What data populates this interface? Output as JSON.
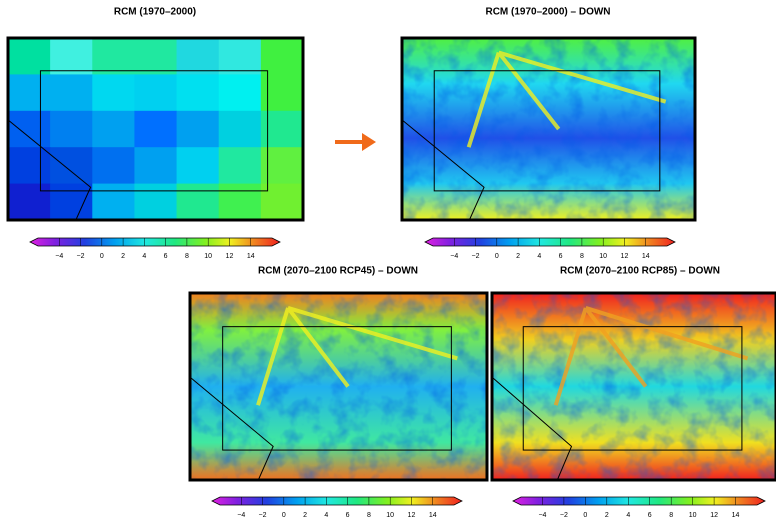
{
  "panels": [
    {
      "title": "RCM (1970–2000)",
      "colorbar_labels": [
        "−4",
        "−2",
        "0",
        "2",
        "4",
        "6",
        "8",
        "10",
        "12",
        "14"
      ]
    },
    {
      "title": "RCM (1970–2000) – DOWN",
      "colorbar_labels": [
        "−4",
        "−2",
        "0",
        "2",
        "4",
        "6",
        "8",
        "10",
        "12",
        "14"
      ]
    },
    {
      "title": "RCM (2070–2100 RCP45) – DOWN",
      "colorbar_labels": [
        "−4",
        "−2",
        "0",
        "2",
        "4",
        "6",
        "8",
        "10",
        "12",
        "14"
      ]
    },
    {
      "title": "RCM (2070–2100 RCP85) – DOWN",
      "colorbar_labels": [
        "−4",
        "−2",
        "0",
        "2",
        "4",
        "6",
        "8",
        "10",
        "12",
        "14"
      ]
    }
  ]
}
